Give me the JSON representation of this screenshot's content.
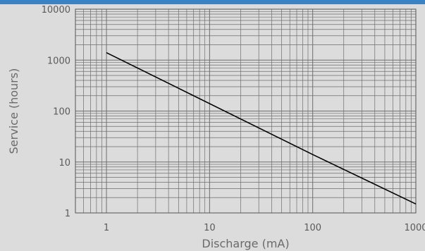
{
  "chart_data": {
    "type": "line",
    "title": "",
    "xlabel": "Discharge (mA)",
    "ylabel": "Service (hours)",
    "x_scale": "log",
    "y_scale": "log",
    "xlim": [
      0.5,
      1000
    ],
    "ylim": [
      1,
      10000
    ],
    "grid": true,
    "x_ticks": [
      "1",
      "10",
      "100",
      "1000"
    ],
    "y_ticks": [
      "10000",
      "1000",
      "100",
      "10",
      "1"
    ],
    "series": [
      {
        "x": [
          1,
          100,
          1000
        ],
        "y": [
          1400,
          14,
          1.5
        ]
      }
    ],
    "colors": {
      "background": "#dcdcdc",
      "grid": "#6e6e6e",
      "line": "#000000",
      "accent_band": "#3a82c4"
    }
  }
}
